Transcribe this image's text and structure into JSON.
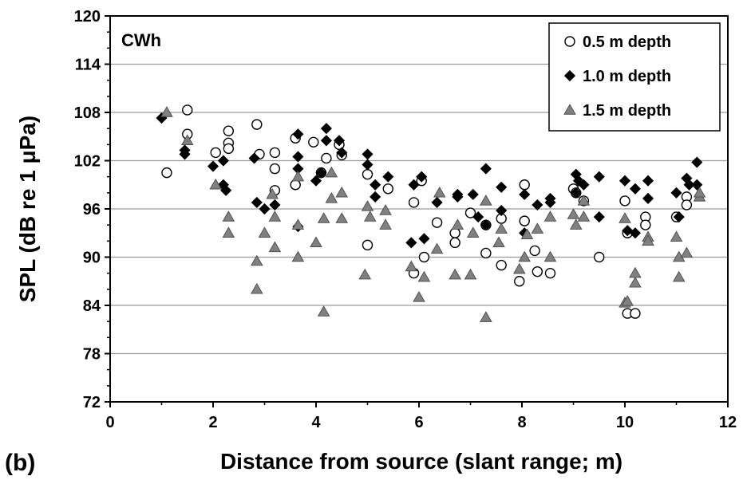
{
  "chart_data": {
    "type": "scatter",
    "panel_label": "CWh",
    "figure_label": "(b)",
    "xlabel": "Distance from source (slant range; m)",
    "ylabel": "SPL (dB re 1 μPa)",
    "xlim": [
      0,
      12
    ],
    "ylim": [
      72,
      120
    ],
    "xticks": [
      "0",
      "2",
      "4",
      "6",
      "8",
      "10",
      "12"
    ],
    "yticks": [
      "72",
      "78",
      "84",
      "90",
      "96",
      "102",
      "108",
      "114",
      "120"
    ],
    "grid": "horizontal",
    "legend_position": "top-right",
    "series": [
      {
        "name": "0.5 m depth",
        "marker": "circle-open",
        "color": "#000000",
        "x": [
          1.1,
          1.5,
          1.5,
          2.05,
          2.3,
          2.3,
          2.3,
          2.85,
          2.9,
          3.2,
          3.2,
          3.2,
          3.6,
          3.6,
          3.95,
          4.1,
          4.2,
          4.45,
          4.5,
          5.0,
          5.0,
          5.4,
          5.9,
          5.9,
          6.05,
          6.1,
          6.35,
          6.7,
          6.7,
          7.0,
          7.3,
          7.3,
          7.6,
          7.6,
          7.95,
          8.05,
          8.05,
          8.25,
          8.3,
          8.55,
          9.0,
          9.05,
          9.2,
          9.5,
          10.0,
          10.05,
          10.05,
          10.2,
          10.4,
          10.4,
          11.0,
          11.2,
          11.2
        ],
        "y": [
          100.5,
          108.3,
          105.3,
          103.0,
          105.7,
          104.2,
          103.5,
          106.5,
          102.8,
          103.0,
          101.0,
          98.3,
          104.8,
          99.0,
          104.3,
          100.5,
          102.3,
          104.0,
          102.7,
          100.3,
          91.5,
          98.5,
          96.8,
          88.0,
          99.5,
          90.0,
          94.3,
          93.0,
          91.8,
          95.5,
          94.0,
          90.5,
          94.8,
          89.0,
          87.0,
          99.0,
          94.5,
          90.8,
          88.2,
          88.0,
          98.5,
          98.0,
          97.0,
          90.0,
          97.0,
          93.0,
          83.0,
          83.0,
          95.0,
          94.0,
          95.0,
          97.5,
          96.5
        ]
      },
      {
        "name": "1.0 m depth",
        "marker": "diamond-filled",
        "color": "#000000",
        "x": [
          1.0,
          1.45,
          1.45,
          2.0,
          2.2,
          2.2,
          2.25,
          2.8,
          2.85,
          3.0,
          3.2,
          3.65,
          3.65,
          3.65,
          3.65,
          4.0,
          4.1,
          4.2,
          4.2,
          4.45,
          4.5,
          5.0,
          5.0,
          5.15,
          5.15,
          5.4,
          5.85,
          5.9,
          6.05,
          6.1,
          6.35,
          6.75,
          6.75,
          7.05,
          7.15,
          7.3,
          7.3,
          7.6,
          7.6,
          8.05,
          8.05,
          8.3,
          8.55,
          8.55,
          9.05,
          9.05,
          9.1,
          9.2,
          9.5,
          9.5,
          10.0,
          10.05,
          10.2,
          10.2,
          10.45,
          10.45,
          11.0,
          11.05,
          11.2,
          11.25,
          11.4,
          11.4
        ],
        "y": [
          107.3,
          103.3,
          102.8,
          101.3,
          102.0,
          99.0,
          98.3,
          102.3,
          96.8,
          96.0,
          96.5,
          105.3,
          102.5,
          101.0,
          93.8,
          99.5,
          100.5,
          106.0,
          104.5,
          104.5,
          103.0,
          102.8,
          101.5,
          99.0,
          97.5,
          100.0,
          91.8,
          99.0,
          100.0,
          92.3,
          96.8,
          97.8,
          97.5,
          97.8,
          95.0,
          101.0,
          94.0,
          98.7,
          95.8,
          97.8,
          93.0,
          96.5,
          97.3,
          96.8,
          100.3,
          98.0,
          99.5,
          99.0,
          100.0,
          95.0,
          99.5,
          93.3,
          98.5,
          93.0,
          99.5,
          97.3,
          98.0,
          95.0,
          99.8,
          99.0,
          101.8,
          99.0
        ]
      },
      {
        "name": "1.5 m depth",
        "marker": "triangle-filled",
        "color": "#808080",
        "x": [
          1.1,
          1.5,
          2.05,
          2.3,
          2.3,
          2.85,
          2.85,
          3.0,
          3.15,
          3.2,
          3.2,
          3.65,
          3.65,
          3.65,
          4.0,
          4.15,
          4.15,
          4.3,
          4.3,
          4.5,
          4.5,
          4.95,
          5.0,
          5.05,
          5.35,
          5.35,
          5.85,
          6.0,
          6.1,
          6.35,
          6.4,
          6.7,
          6.75,
          7.0,
          7.05,
          7.3,
          7.3,
          7.55,
          7.6,
          7.95,
          8.05,
          8.1,
          8.3,
          8.55,
          8.55,
          9.0,
          9.05,
          9.2,
          9.2,
          10.0,
          10.0,
          10.05,
          10.2,
          10.2,
          10.45,
          10.45,
          11.0,
          11.05,
          11.05,
          11.2,
          11.45,
          11.45
        ],
        "y": [
          108.0,
          104.5,
          99.0,
          95.0,
          93.0,
          89.5,
          86.0,
          93.0,
          97.8,
          95.0,
          91.2,
          100.0,
          94.0,
          90.0,
          91.8,
          83.2,
          94.8,
          100.5,
          97.3,
          98.0,
          94.8,
          87.8,
          96.3,
          95.0,
          95.8,
          94.0,
          88.8,
          85.0,
          87.5,
          91.0,
          98.0,
          87.8,
          94.0,
          87.8,
          93.0,
          82.5,
          97.0,
          91.8,
          93.5,
          88.5,
          90.0,
          92.8,
          93.5,
          95.0,
          90.0,
          95.3,
          94.0,
          97.0,
          95.0,
          94.8,
          84.3,
          84.5,
          88.0,
          86.8,
          92.5,
          92.0,
          92.5,
          90.0,
          87.5,
          90.5,
          97.5,
          98.0
        ]
      }
    ]
  }
}
